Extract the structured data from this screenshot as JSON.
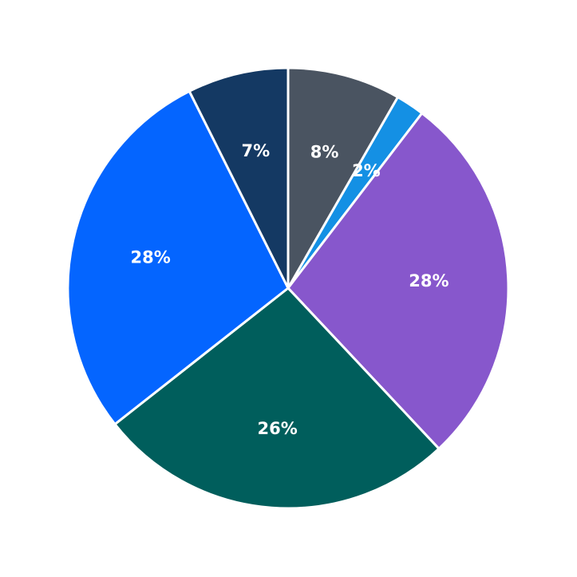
{
  "chart_data": {
    "type": "pie",
    "title": "",
    "start": "top",
    "direction": "clockwise",
    "slices": [
      {
        "label": "8%",
        "value": 8.3,
        "color": "#4a5461"
      },
      {
        "label": "2%",
        "value": 2.1,
        "color": "#1490e4"
      },
      {
        "label": "28%",
        "value": 27.6,
        "color": "#8757cc"
      },
      {
        "label": "26%",
        "value": 26.4,
        "color": "#005e5c"
      },
      {
        "label": "28%",
        "value": 28.2,
        "color": "#0465ff"
      },
      {
        "label": "7%",
        "value": 7.4,
        "color": "#143963"
      }
    ]
  }
}
